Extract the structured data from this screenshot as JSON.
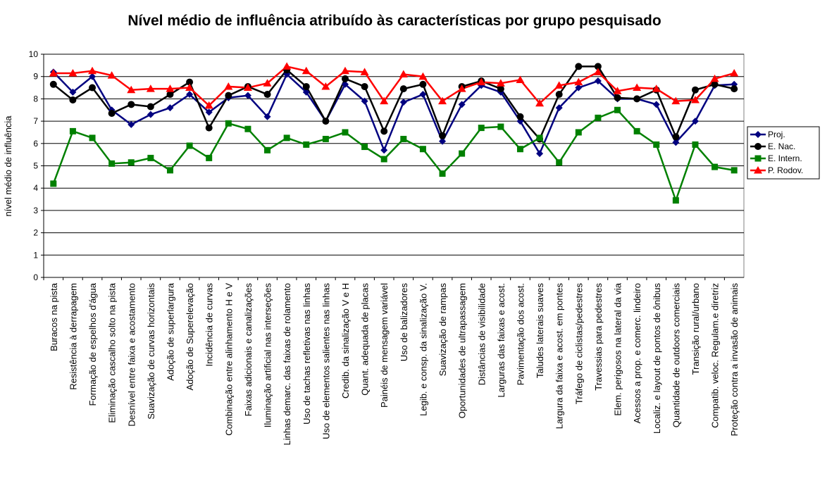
{
  "chart_data": {
    "type": "line",
    "title": "Nível médio de influência atribuído às características por grupo pesquisado",
    "y_label": "nível médio de influência",
    "categories": [
      "Buracos na pista",
      "Resistência à derrapagem",
      "Formação de espelhos d'água",
      "Eliminação cascalho solto na pista",
      "Desnível entre faixa e acostamento",
      "Suavização de curvas horizontais",
      "Adoção de superlargura",
      "Adoção de Superelevação",
      "Incidência de curvas",
      "Combinação entre alinhamento H e V",
      "Faixas adicionais e canalizações",
      "Iluminação artificial nas interseções",
      "Linhas demarc. das faixas de rolamento",
      "Uso de tachas refletivas nas linhas",
      "Uso de elementos salientes nas linhas",
      "Credib. da sinalização V e H",
      "Quant. adequada de placas",
      "Painéis de mensagem variável",
      "Uso de balizadores",
      "Legib. e consp. da sinalização V.",
      "Suavização de rampas",
      "Oportunidades de ultrapassagem",
      "Distâncias de visibilidade",
      "Larguras das faixas e acost.",
      "Pavimentação dos acost.",
      "Taludes laterais suaves",
      "Largura da faixa e acost. em pontes",
      "Tráfego de ciclistas/pedestres",
      "Travessias para pedestres",
      "Elem. perigosos na lateral da via",
      "Acessos a prop. e comerc. lindeiro",
      "Localiz. e layout de pontos de ônibus",
      "Quantidade de outdoors comerciais",
      "Transição rural/urbano",
      "Compatib. veloc. Regulam.e diretriz",
      "Proteção contra a invasão de animais"
    ],
    "series": [
      {
        "name": "Proj.",
        "color": "#000080",
        "marker": "diamond",
        "values": [
          9.2,
          8.3,
          9.0,
          7.5,
          6.85,
          7.3,
          7.6,
          8.2,
          7.4,
          8.05,
          8.15,
          7.2,
          9.1,
          8.3,
          7.0,
          8.65,
          7.9,
          5.7,
          7.85,
          8.2,
          6.1,
          7.75,
          8.6,
          8.3,
          7.0,
          5.55,
          7.6,
          8.5,
          8.8,
          8.0,
          8.0,
          7.75,
          6.05,
          7.0,
          8.6,
          8.65
        ]
      },
      {
        "name": "E. Nac.",
        "color": "#000000",
        "marker": "circle",
        "values": [
          8.65,
          7.95,
          8.5,
          7.35,
          7.75,
          7.65,
          8.2,
          8.75,
          6.7,
          8.15,
          8.55,
          8.2,
          9.3,
          8.55,
          7.0,
          8.9,
          8.55,
          6.55,
          8.45,
          8.65,
          6.35,
          8.55,
          8.8,
          8.45,
          7.2,
          6.2,
          8.2,
          9.45,
          9.45,
          8.05,
          8.0,
          8.4,
          6.3,
          8.4,
          8.65,
          8.45
        ]
      },
      {
        "name": "E. Intern.",
        "color": "#008000",
        "marker": "square",
        "values": [
          4.2,
          6.55,
          6.25,
          5.1,
          5.15,
          5.35,
          4.8,
          5.9,
          5.35,
          6.9,
          6.65,
          5.7,
          6.25,
          5.95,
          6.2,
          6.5,
          5.85,
          5.3,
          6.2,
          5.75,
          4.65,
          5.55,
          6.7,
          6.75,
          5.75,
          6.25,
          5.15,
          6.5,
          7.15,
          7.5,
          6.55,
          5.95,
          3.45,
          5.95,
          4.95,
          4.8
        ]
      },
      {
        "name": "P. Rodov.",
        "color": "#ff0000",
        "marker": "triangle",
        "values": [
          9.15,
          9.15,
          9.25,
          9.05,
          8.4,
          8.45,
          8.45,
          8.5,
          7.7,
          8.55,
          8.5,
          8.7,
          9.45,
          9.25,
          8.55,
          9.25,
          9.2,
          7.9,
          9.1,
          9.0,
          7.9,
          8.45,
          8.75,
          8.7,
          8.85,
          7.8,
          8.6,
          8.75,
          9.2,
          8.35,
          8.5,
          8.45,
          7.9,
          7.95,
          8.9,
          9.15
        ]
      }
    ],
    "ylim": [
      0,
      10
    ],
    "yticks": [
      0,
      1,
      2,
      3,
      4,
      5,
      6,
      7,
      8,
      9,
      10
    ],
    "grid": true,
    "legend": "right"
  }
}
